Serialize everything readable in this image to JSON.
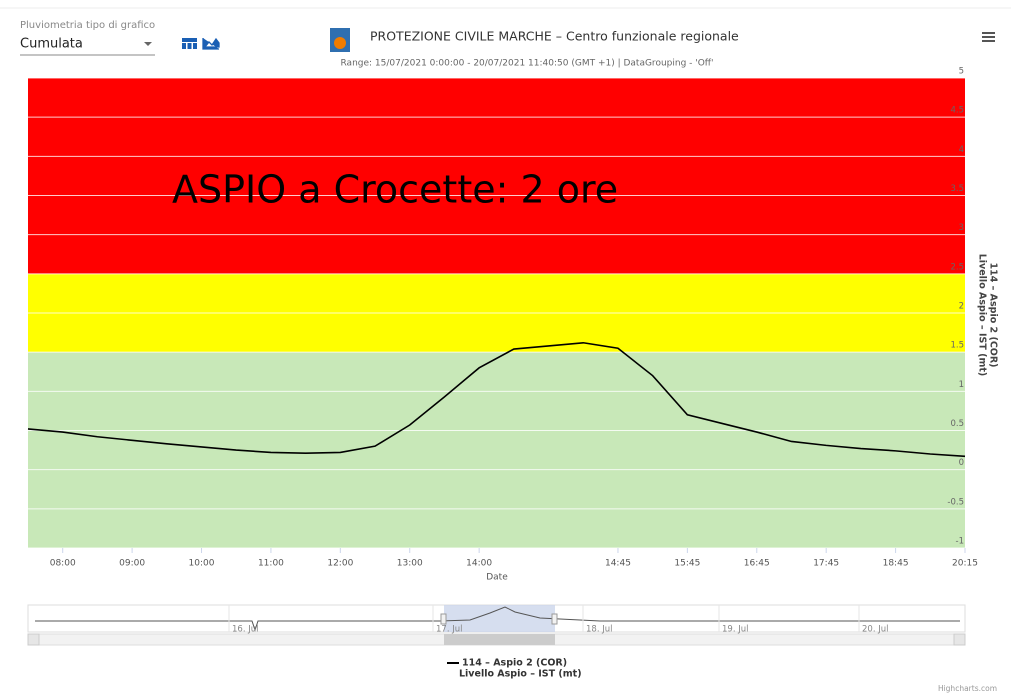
{
  "ui": {
    "select_label": "Pluviometria tipo di grafico",
    "select_value": "Cumulata"
  },
  "chart_data": {
    "type": "line",
    "title": "PROTEZIONE CIVILE MARCHE – Centro funzionale regionale",
    "subtitle": "Range: 15/07/2021 0:00:00 - 20/07/2021 11:40:50 (GMT +1) | DataGrouping - 'Off'",
    "annotation": "ASPIO a Crocette: 2 ore",
    "x_label": "Date",
    "y_label": [
      "114 – Aspio 2 (COR)",
      "Livello Aspio – IST (mt)"
    ],
    "categories": [
      null,
      "08:00",
      null,
      "09:00",
      null,
      "10:00",
      null,
      "11:00",
      null,
      "12:00",
      null,
      "13:00",
      null,
      "14:00",
      null,
      null,
      null,
      "14:45",
      null,
      "15:45",
      null,
      "16:45",
      null,
      "17:45",
      null,
      "18:45",
      null,
      "20:15"
    ],
    "series": [
      {
        "name": "114 – Aspio 2 (COR)",
        "color": "#000000",
        "values": [
          0.52,
          0.48,
          0.42,
          0.375,
          0.33,
          0.29,
          0.25,
          0.22,
          0.21,
          0.22,
          0.3,
          0.57,
          0.93,
          1.3,
          1.54,
          1.58,
          1.62,
          1.55,
          1.2,
          0.7,
          0.59,
          0.48,
          0.36,
          0.31,
          0.27,
          0.24,
          0.2,
          0.17
        ]
      }
    ],
    "ylim": [
      -1,
      5
    ],
    "yticks": [
      -1,
      -0.5,
      0,
      0.5,
      1,
      1.5,
      2,
      2.5,
      3,
      3.5,
      4,
      4.5,
      5
    ],
    "plot_bands": [
      {
        "from": -1,
        "to": 1.5,
        "color": "#c8e8b8"
      },
      {
        "from": 1.5,
        "to": 2.5,
        "color": "#ffff00"
      },
      {
        "from": 2.5,
        "to": 5,
        "color": "#ff0000"
      }
    ],
    "grid": true,
    "navigator_labels": [
      "16. Jul",
      "17. Jul",
      "18. Jul",
      "19. Jul",
      "20. Jul"
    ],
    "credits": "Highcharts.com"
  }
}
